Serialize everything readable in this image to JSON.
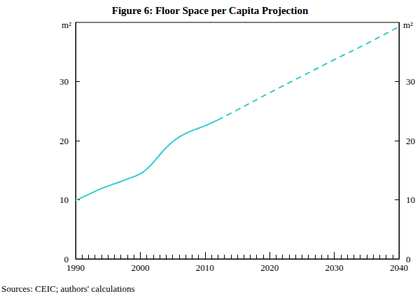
{
  "chart_data": {
    "type": "line",
    "title": "Figure 6: Floor Space per Capita Projection",
    "y_label": "m²",
    "source": "Sources: CEIC; authors' calculations",
    "x": [
      1990,
      1992,
      1994,
      1996,
      1998,
      2000,
      2001,
      2002,
      2003,
      2004,
      2005,
      2006,
      2007,
      2008,
      2009,
      2010,
      2011,
      2012,
      2015,
      2020,
      2025,
      2030,
      2035,
      2040
    ],
    "series": [
      {
        "color": "#33cccc",
        "line_style": "solid",
        "values": [
          9.9,
          10.9,
          11.9,
          12.7,
          13.5,
          14.4,
          15.2,
          16.3,
          17.6,
          18.8,
          19.8,
          20.6,
          21.2,
          21.7,
          22.1,
          22.5,
          23.0,
          23.5,
          null,
          null,
          null,
          null,
          null,
          null
        ]
      },
      {
        "color": "#33cccc",
        "line_style": "dashed",
        "values": [
          null,
          null,
          null,
          null,
          null,
          null,
          null,
          null,
          null,
          null,
          null,
          null,
          null,
          null,
          null,
          null,
          null,
          23.5,
          25.2,
          28.1,
          30.9,
          33.7,
          36.4,
          39.3
        ]
      }
    ],
    "xlim": [
      1990,
      2040
    ],
    "xticks": [
      1990,
      2000,
      2010,
      2020,
      2030,
      2040
    ],
    "ylim": [
      0,
      40
    ],
    "yticks": [
      0,
      10,
      20,
      30
    ],
    "grid": false
  }
}
